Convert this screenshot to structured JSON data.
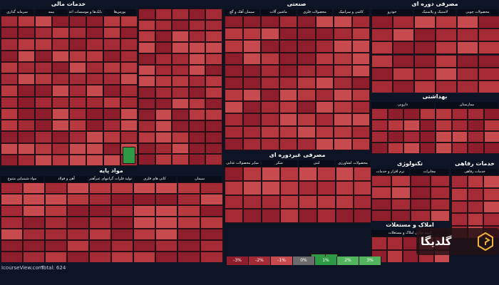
{
  "colors": {
    "red1": "#8e1e2b",
    "red2": "#a42b36",
    "red3": "#b8383f",
    "red4": "#c74a4e",
    "green1": "#2f9a45",
    "green2": "#52b45d",
    "neutral": "#6b6b6b",
    "bg": "#0d1426"
  },
  "sectors": [
    {
      "title": "خدمات مالی",
      "subs": [
        "سرمایه گذاری",
        "بیمه",
        "بانک‌ها و موسسات اعتباری",
        "بورس‌ها"
      ]
    },
    {
      "title": "صنعتی",
      "subs": [
        "سیمان آهک و گچ",
        "ماشین آلات",
        "محصولات فلزی",
        "کاشی و سرامیک"
      ]
    },
    {
      "title": "مصرفی دوره ای",
      "subs": [
        "خودرو",
        "لاستیک و پلاستیک",
        "محصولات چوبی"
      ]
    },
    {
      "title": "بهداشتی",
      "subs": [
        "دارویی",
        "بیمارستان"
      ]
    },
    {
      "title": "مصرفی غیردوره ای",
      "subs": [
        "سایر محصولات غذایی",
        "شکر",
        "لبنی",
        "محصولات کشاورزی"
      ]
    },
    {
      "title": "مواد پایه",
      "subs": [
        "مواد شیمیایی متنوع",
        "آهن و فولاد",
        "تولید فلزات گرانبهای غیرآهنی",
        "کانی های فلزی",
        "سیمان"
      ]
    },
    {
      "title": "تکنولوژی",
      "subs": [
        "نرم افزار و خدمات",
        "مخابرات"
      ]
    },
    {
      "title": "خدمات رفاهی",
      "subs": [
        "خدمات رفاهی"
      ]
    },
    {
      "title": "املاک و مستغلات",
      "subs": [
        "انبوه سازی املاک و مستغلات"
      ]
    }
  ],
  "footer": {
    "site": "IcourseView.com",
    "total": "Total: 624"
  },
  "scale": [
    "-3%",
    "-2%",
    "-1%",
    "0%",
    "1%",
    "2%",
    "3%"
  ],
  "brand": {
    "name": "گلدیگا"
  }
}
